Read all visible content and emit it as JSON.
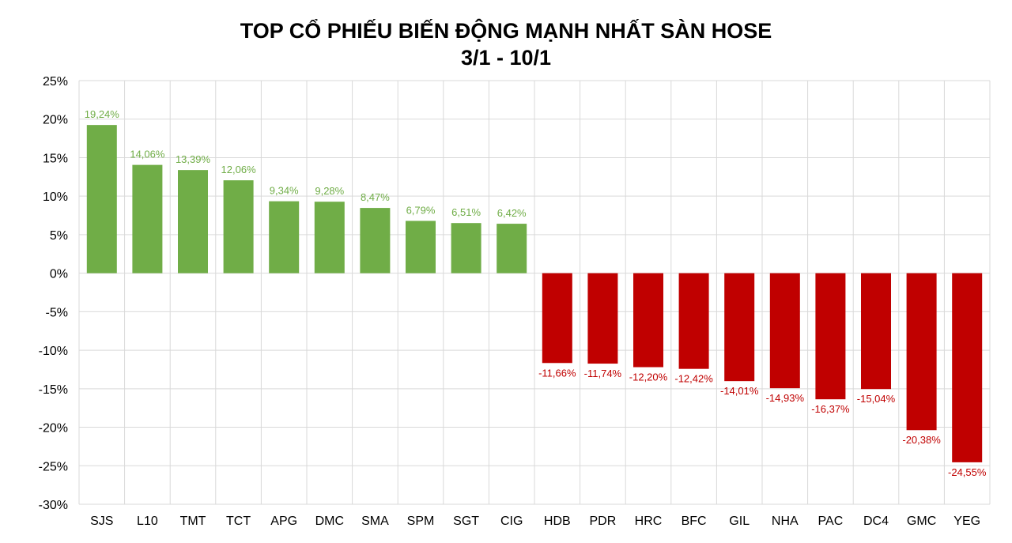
{
  "chart_data": {
    "type": "bar",
    "title": "TOP CỔ PHIẾU BIẾN ĐỘNG MẠNH NHẤT SÀN HOSE",
    "subtitle": "3/1 - 10/1",
    "xlabel": "",
    "ylabel": "",
    "ylim": [
      -30,
      25
    ],
    "yticks": [
      "25%",
      "20%",
      "15%",
      "10%",
      "5%",
      "0%",
      "-5%",
      "-10%",
      "-15%",
      "-20%",
      "-25%",
      "-30%"
    ],
    "ytick_values": [
      25,
      20,
      15,
      10,
      5,
      0,
      -5,
      -10,
      -15,
      -20,
      -25,
      -30
    ],
    "grid": true,
    "categories": [
      "SJS",
      "L10",
      "TMT",
      "TCT",
      "APG",
      "DMC",
      "SMA",
      "SPM",
      "SGT",
      "CIG",
      "HDB",
      "PDR",
      "HRC",
      "BFC",
      "GIL",
      "NHA",
      "PAC",
      "DC4",
      "GMC",
      "YEG"
    ],
    "values": [
      19.24,
      14.06,
      13.39,
      12.06,
      9.34,
      9.28,
      8.47,
      6.79,
      6.51,
      6.42,
      -11.66,
      -11.74,
      -12.2,
      -12.42,
      -14.01,
      -14.93,
      -16.37,
      -15.04,
      -20.38,
      -24.55
    ],
    "data_labels": [
      "19,24%",
      "14,06%",
      "13,39%",
      "12,06%",
      "9,34%",
      "9,28%",
      "8,47%",
      "6,79%",
      "6,51%",
      "6,42%",
      "-11,66%",
      "-11,74%",
      "-12,20%",
      "-12,42%",
      "-14,01%",
      "-14,93%",
      "-16,37%",
      "-15,04%",
      "-20,38%",
      "-24,55%"
    ],
    "colors": {
      "positive_bar": "#70AD47",
      "positive_label": "#70AD47",
      "negative_bar": "#C00000",
      "negative_label": "#C00000",
      "grid": "#D9D9D9",
      "axis_text": "#000000"
    }
  }
}
